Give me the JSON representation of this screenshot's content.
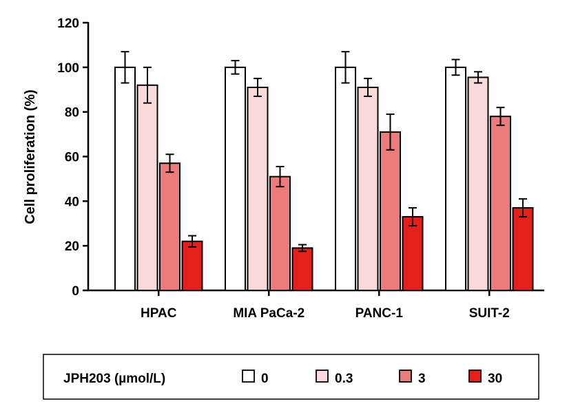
{
  "chart_data": {
    "type": "bar",
    "ylabel": "Cell proliferation (%)",
    "xlabel": "",
    "ylim": [
      0,
      120
    ],
    "yticks": [
      0,
      20,
      40,
      60,
      80,
      100,
      120
    ],
    "grid": false,
    "categories": [
      "HPAC",
      "MIA PaCa-2",
      "PANC-1",
      "SUIT-2"
    ],
    "legend_title": "JPH203 (µmol/L)",
    "legend_position": "bottom",
    "series": [
      {
        "name": "0",
        "color": "#ffffff",
        "values": [
          100,
          100,
          100,
          100
        ],
        "error": [
          7,
          3,
          7,
          3.5
        ]
      },
      {
        "name": "0.3",
        "color": "#f9d9d9",
        "values": [
          92,
          91,
          91,
          95.5
        ],
        "error": [
          8,
          4,
          4,
          2.5
        ]
      },
      {
        "name": "3",
        "color": "#ec7b7b",
        "values": [
          57,
          51,
          71,
          78
        ],
        "error": [
          4,
          4.5,
          8,
          4
        ]
      },
      {
        "name": "30",
        "color": "#e3201b",
        "values": [
          22,
          19,
          33,
          37
        ],
        "error": [
          2.5,
          1.5,
          4,
          4
        ]
      }
    ]
  }
}
